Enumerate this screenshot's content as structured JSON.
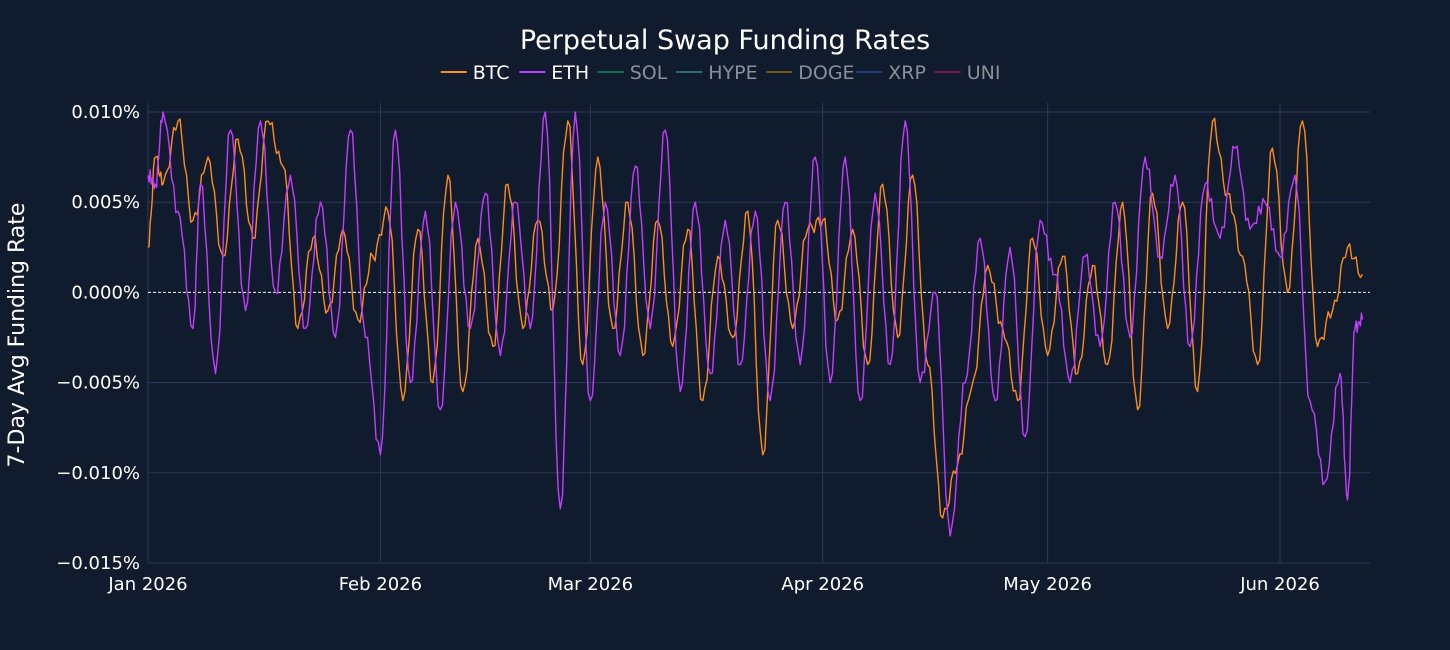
{
  "colors": {
    "background": "#111b2e",
    "grid": "#2a3a5c",
    "zero_line": "#ffffff",
    "text": "#ffffff",
    "legend_hidden_text": "#8a8f99"
  },
  "chart_data": {
    "type": "line",
    "title": "Perpetual Swap Funding Rates",
    "ylabel": "7-Day Avg Funding Rate",
    "xlabel": "",
    "ylim": [
      -0.015,
      0.0105
    ],
    "xlim": [
      "2026-01-01",
      "2026-06-13"
    ],
    "grid": true,
    "zero_line": "dashed",
    "legend_placement": "top-center",
    "y_ticks": [
      {
        "value": 0.01,
        "label": "0.010%"
      },
      {
        "value": 0.005,
        "label": "0.005%"
      },
      {
        "value": 0.0,
        "label": "0.000%"
      },
      {
        "value": -0.005,
        "label": "−0.005%"
      },
      {
        "value": -0.01,
        "label": "−0.010%"
      },
      {
        "value": -0.015,
        "label": "−0.015%"
      }
    ],
    "x_ticks": [
      {
        "date": "2026-01-01",
        "label": "Jan 2026"
      },
      {
        "date": "2026-02-01",
        "label": "Feb 2026"
      },
      {
        "date": "2026-03-01",
        "label": "Mar 2026"
      },
      {
        "date": "2026-04-01",
        "label": "Apr 2026"
      },
      {
        "date": "2026-05-01",
        "label": "May 2026"
      },
      {
        "date": "2026-06-01",
        "label": "Jun 2026"
      }
    ],
    "legend": [
      {
        "name": "BTC",
        "color": "#ff8c1a",
        "visible": true
      },
      {
        "name": "ETH",
        "color": "#c43cff",
        "visible": true
      },
      {
        "name": "SOL",
        "color": "#0f6b5a",
        "visible": false
      },
      {
        "name": "HYPE",
        "color": "#2f6b6b",
        "visible": false
      },
      {
        "name": "DOGE",
        "color": "#6b5a14",
        "visible": false
      },
      {
        "name": "XRP",
        "color": "#1f3f80",
        "visible": false
      },
      {
        "name": "UNI",
        "color": "#7a1a4f",
        "visible": false
      }
    ],
    "series": [
      {
        "name": "BTC",
        "color": "#ff8c1a",
        "x": [
          "2026-01-01",
          "2026-01-02",
          "2026-01-03",
          "2026-01-05",
          "2026-01-07",
          "2026-01-09",
          "2026-01-11",
          "2026-01-13",
          "2026-01-15",
          "2026-01-17",
          "2026-01-19",
          "2026-01-21",
          "2026-01-23",
          "2026-01-25",
          "2026-01-27",
          "2026-01-29",
          "2026-01-31",
          "2026-02-02",
          "2026-02-04",
          "2026-02-06",
          "2026-02-08",
          "2026-02-10",
          "2026-02-12",
          "2026-02-14",
          "2026-02-16",
          "2026-02-18",
          "2026-02-20",
          "2026-02-22",
          "2026-02-24",
          "2026-02-26",
          "2026-02-28",
          "2026-03-02",
          "2026-03-04",
          "2026-03-06",
          "2026-03-08",
          "2026-03-10",
          "2026-03-12",
          "2026-03-14",
          "2026-03-16",
          "2026-03-18",
          "2026-03-20",
          "2026-03-22",
          "2026-03-24",
          "2026-03-26",
          "2026-03-28",
          "2026-03-30",
          "2026-04-01",
          "2026-04-03",
          "2026-04-05",
          "2026-04-07",
          "2026-04-09",
          "2026-04-11",
          "2026-04-13",
          "2026-04-15",
          "2026-04-17",
          "2026-04-19",
          "2026-04-21",
          "2026-04-23",
          "2026-04-25",
          "2026-04-27",
          "2026-04-29",
          "2026-05-01",
          "2026-05-03",
          "2026-05-05",
          "2026-05-07",
          "2026-05-09",
          "2026-05-11",
          "2026-05-13",
          "2026-05-15",
          "2026-05-17",
          "2026-05-19",
          "2026-05-21",
          "2026-05-23",
          "2026-05-25",
          "2026-05-27",
          "2026-05-29",
          "2026-05-31",
          "2026-06-02",
          "2026-06-04",
          "2026-06-06",
          "2026-06-08",
          "2026-06-10",
          "2026-06-12"
        ],
        "values": [
          0.0025,
          0.0075,
          0.006,
          0.0095,
          0.004,
          0.0075,
          0.002,
          0.0085,
          0.003,
          0.0095,
          0.007,
          -0.002,
          0.003,
          -0.001,
          0.0035,
          -0.0015,
          0.002,
          0.0045,
          -0.006,
          0.0035,
          -0.005,
          0.0065,
          -0.0055,
          0.003,
          -0.003,
          0.006,
          -0.002,
          0.004,
          -0.001,
          0.0095,
          -0.004,
          0.0075,
          -0.002,
          0.005,
          -0.0035,
          0.004,
          -0.003,
          0.0035,
          -0.006,
          0.002,
          -0.0025,
          0.0045,
          -0.009,
          0.004,
          -0.002,
          0.0035,
          0.004,
          -0.0015,
          0.0035,
          -0.004,
          0.006,
          -0.0025,
          0.0065,
          -0.004,
          -0.0125,
          -0.0095,
          -0.005,
          0.0015,
          -0.002,
          -0.006,
          0.003,
          -0.0035,
          0.002,
          -0.0045,
          0.0015,
          -0.004,
          0.005,
          -0.0065,
          0.0055,
          -0.002,
          0.005,
          -0.0055,
          0.0095,
          0.0055,
          0.002,
          -0.004,
          0.008,
          0.0,
          0.0095,
          -0.003,
          -0.001,
          0.0025,
          0.001
        ]
      },
      {
        "name": "ETH",
        "color": "#c43cff",
        "x": [
          "2026-01-01",
          "2026-01-02",
          "2026-01-03",
          "2026-01-05",
          "2026-01-07",
          "2026-01-08",
          "2026-01-10",
          "2026-01-12",
          "2026-01-14",
          "2026-01-16",
          "2026-01-18",
          "2026-01-20",
          "2026-01-22",
          "2026-01-24",
          "2026-01-26",
          "2026-01-28",
          "2026-01-30",
          "2026-02-01",
          "2026-02-03",
          "2026-02-05",
          "2026-02-07",
          "2026-02-09",
          "2026-02-11",
          "2026-02-13",
          "2026-02-15",
          "2026-02-17",
          "2026-02-19",
          "2026-02-21",
          "2026-02-23",
          "2026-02-25",
          "2026-02-27",
          "2026-03-01",
          "2026-03-03",
          "2026-03-05",
          "2026-03-07",
          "2026-03-09",
          "2026-03-11",
          "2026-03-13",
          "2026-03-15",
          "2026-03-17",
          "2026-03-19",
          "2026-03-21",
          "2026-03-23",
          "2026-03-25",
          "2026-03-27",
          "2026-03-29",
          "2026-03-31",
          "2026-04-02",
          "2026-04-04",
          "2026-04-06",
          "2026-04-08",
          "2026-04-10",
          "2026-04-12",
          "2026-04-14",
          "2026-04-16",
          "2026-04-18",
          "2026-04-20",
          "2026-04-22",
          "2026-04-24",
          "2026-04-26",
          "2026-04-28",
          "2026-04-30",
          "2026-05-02",
          "2026-05-04",
          "2026-05-06",
          "2026-05-08",
          "2026-05-10",
          "2026-05-12",
          "2026-05-14",
          "2026-05-16",
          "2026-05-18",
          "2026-05-20",
          "2026-05-22",
          "2026-05-24",
          "2026-05-26",
          "2026-05-28",
          "2026-05-30",
          "2026-06-01",
          "2026-06-03",
          "2026-06-05",
          "2026-06-07",
          "2026-06-09",
          "2026-06-10",
          "2026-06-11",
          "2026-06-12"
        ],
        "values": [
          0.0065,
          0.006,
          0.01,
          0.0045,
          -0.002,
          0.006,
          -0.0045,
          0.009,
          -0.001,
          0.0095,
          0.0,
          0.0065,
          -0.002,
          0.005,
          -0.0025,
          0.009,
          -0.0025,
          -0.009,
          0.009,
          -0.005,
          0.0045,
          -0.0065,
          0.005,
          -0.002,
          0.0055,
          -0.0035,
          0.005,
          -0.002,
          0.01,
          -0.012,
          0.01,
          -0.006,
          0.005,
          -0.0035,
          0.007,
          -0.002,
          0.009,
          -0.0055,
          0.005,
          -0.0045,
          0.004,
          -0.004,
          0.0045,
          -0.006,
          0.005,
          -0.004,
          0.0075,
          -0.005,
          0.0075,
          -0.006,
          0.0055,
          -0.004,
          0.0095,
          -0.005,
          0.0,
          -0.0135,
          -0.005,
          0.003,
          -0.006,
          0.0025,
          -0.008,
          0.004,
          0.001,
          -0.005,
          0.002,
          -0.003,
          0.005,
          -0.0025,
          0.0075,
          0.002,
          0.0065,
          -0.003,
          0.006,
          0.003,
          0.008,
          0.0035,
          0.005,
          0.002,
          0.0065,
          -0.006,
          -0.0105,
          -0.0045,
          -0.0115,
          -0.002,
          -0.0015
        ]
      }
    ]
  }
}
